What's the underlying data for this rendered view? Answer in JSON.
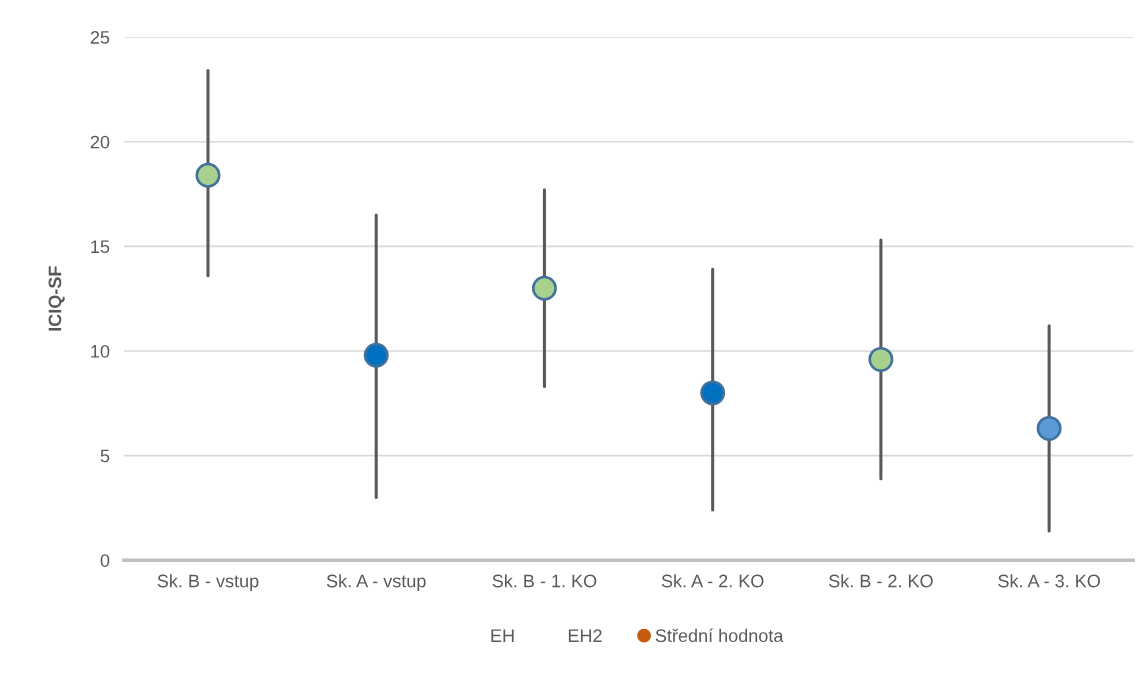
{
  "chart_data": {
    "type": "scatter",
    "ylabel": "ICIQ-SF",
    "categories": [
      "Sk. B - vstup",
      "Sk. A - vstup",
      "Sk. B - 1. KO",
      "Sk. A - 2. KO",
      "Sk. B - 2. KO",
      "Sk. A - 3. KO"
    ],
    "series": [
      {
        "name": "EH",
        "color": null,
        "values": [
          null,
          null,
          null,
          null,
          null,
          null
        ]
      },
      {
        "name": "EH2",
        "color": null,
        "values": [
          null,
          null,
          null,
          null,
          null,
          null
        ]
      },
      {
        "name": "Střední hodnota",
        "color": "#c55a11",
        "colors": [
          "#a9d18e",
          "#0070c0",
          "#a9d18e",
          "#0070c0",
          "#a9d18e",
          "#5b9bd5"
        ],
        "values": [
          18.4,
          9.8,
          13.0,
          8.0,
          9.6,
          6.3
        ],
        "errors": [
          [
            13.6,
            23.4
          ],
          [
            3.0,
            16.5
          ],
          [
            8.3,
            17.7
          ],
          [
            2.4,
            13.9
          ],
          [
            3.9,
            15.3
          ],
          [
            1.4,
            11.2
          ]
        ]
      }
    ],
    "ylim": [
      0,
      25
    ],
    "yticks": [
      0,
      5,
      10,
      15,
      20,
      25
    ],
    "grid": "y",
    "legend": "bottom",
    "marker": "circle"
  }
}
